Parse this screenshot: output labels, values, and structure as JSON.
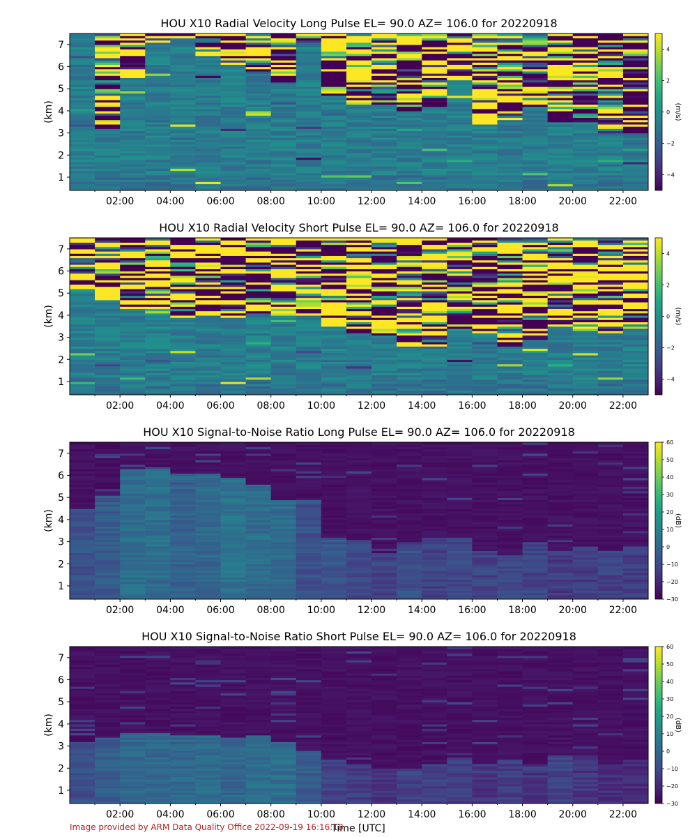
{
  "figure": {
    "xlabel": "Time [UTC]",
    "credit": "Image provided by ARM Data Quality Office 2022-09-19 16:16:18"
  },
  "chart_data": [
    {
      "type": "heatmap",
      "title": "HOU X10 Radial Velocity Long Pulse EL= 90.0 AZ= 106.0 for 20220918",
      "ylabel": "(km)",
      "colorbar_label": "(m/s)",
      "x_ticks": [
        "02:00",
        "04:00",
        "06:00",
        "08:00",
        "10:00",
        "12:00",
        "14:00",
        "16:00",
        "18:00",
        "20:00",
        "22:00"
      ],
      "x_tick_hours": [
        2,
        4,
        6,
        8,
        10,
        12,
        14,
        16,
        18,
        20,
        22
      ],
      "xlim_hours": [
        0,
        23
      ],
      "y_ticks": [
        "1",
        "2",
        "3",
        "4",
        "5",
        "6",
        "7"
      ],
      "y_tick_values": [
        1,
        2,
        3,
        4,
        5,
        6,
        7
      ],
      "ylim_km": [
        0.4,
        7.5
      ],
      "colorbar_ticks": [
        "4",
        "2",
        "0",
        "−2",
        "−4"
      ],
      "colorbar_tick_values": [
        4,
        2,
        0,
        -2,
        -4
      ],
      "clim": [
        -5,
        5
      ],
      "colormap": "viridis",
      "noise_above_km_by_hour": [
        7.5,
        3.2,
        5.4,
        7.0,
        7.2,
        6.4,
        6.0,
        5.6,
        5.2,
        7.0,
        4.6,
        4.3,
        4.3,
        4.0,
        4.2,
        5.3,
        3.4,
        3.6,
        4.2,
        3.5,
        3.5,
        3.2,
        3.0,
        4.5
      ]
    },
    {
      "type": "heatmap",
      "title": "HOU X10 Radial Velocity Short Pulse EL= 90.0 AZ= 106.0 for 20220918",
      "ylabel": "(km)",
      "colorbar_label": "(m/s)",
      "x_ticks": [
        "02:00",
        "04:00",
        "06:00",
        "08:00",
        "10:00",
        "12:00",
        "14:00",
        "16:00",
        "18:00",
        "20:00",
        "22:00"
      ],
      "x_tick_hours": [
        2,
        4,
        6,
        8,
        10,
        12,
        14,
        16,
        18,
        20,
        22
      ],
      "xlim_hours": [
        0,
        23
      ],
      "y_ticks": [
        "1",
        "2",
        "3",
        "4",
        "5",
        "6",
        "7"
      ],
      "y_tick_values": [
        1,
        2,
        3,
        4,
        5,
        6,
        7
      ],
      "ylim_km": [
        0.4,
        7.5
      ],
      "colorbar_ticks": [
        "4",
        "2",
        "0",
        "−2",
        "−4"
      ],
      "colorbar_tick_values": [
        4,
        2,
        0,
        -2,
        -4
      ],
      "clim": [
        -5,
        5
      ],
      "colormap": "viridis",
      "noise_above_km_by_hour": [
        5.0,
        4.6,
        4.3,
        4.0,
        3.9,
        4.0,
        3.9,
        4.1,
        4.0,
        4.0,
        3.5,
        3.2,
        3.1,
        2.6,
        2.5,
        3.3,
        3.2,
        2.6,
        2.9,
        3.5,
        3.3,
        3.2,
        3.6,
        3.8
      ]
    },
    {
      "type": "heatmap",
      "title": "HOU X10 Signal-to-Noise Ratio Long Pulse EL= 90.0 AZ= 106.0 for 20220918",
      "ylabel": "(km)",
      "colorbar_label": "(dB)",
      "x_ticks": [
        "02:00",
        "04:00",
        "06:00",
        "08:00",
        "10:00",
        "12:00",
        "14:00",
        "16:00",
        "18:00",
        "20:00",
        "22:00"
      ],
      "x_tick_hours": [
        2,
        4,
        6,
        8,
        10,
        12,
        14,
        16,
        18,
        20,
        22
      ],
      "xlim_hours": [
        0,
        23
      ],
      "y_ticks": [
        "1",
        "2",
        "3",
        "4",
        "5",
        "6",
        "7"
      ],
      "y_tick_values": [
        1,
        2,
        3,
        4,
        5,
        6,
        7
      ],
      "ylim_km": [
        0.4,
        7.5
      ],
      "colorbar_ticks": [
        "60",
        "50",
        "40",
        "30",
        "20",
        "10",
        "0",
        "−10",
        "−20",
        "−30"
      ],
      "colorbar_tick_values": [
        60,
        50,
        40,
        30,
        20,
        10,
        0,
        -10,
        -20,
        -30
      ],
      "clim": [
        -30,
        60
      ],
      "colormap": "viridis",
      "signal_top_km_by_hour": [
        4.5,
        5.0,
        6.2,
        6.2,
        6.0,
        6.0,
        5.8,
        5.5,
        4.8,
        4.8,
        3.2,
        3.0,
        2.5,
        2.8,
        3.2,
        3.2,
        2.6,
        2.4,
        3.0,
        2.5,
        2.8,
        2.6,
        2.8,
        2.6
      ],
      "signal_snr_db_by_hour": [
        -8,
        -4,
        2,
        2,
        -2,
        0,
        4,
        2,
        2,
        -8,
        -6,
        -10,
        -12,
        -8,
        -12,
        -10,
        -12,
        -10,
        -12,
        -14,
        -14,
        -12,
        -14,
        -14
      ]
    },
    {
      "type": "heatmap",
      "title": "HOU X10 Signal-to-Noise Ratio Short Pulse EL= 90.0 AZ= 106.0 for 20220918",
      "ylabel": "(km)",
      "colorbar_label": "(dB)",
      "x_ticks": [
        "02:00",
        "04:00",
        "06:00",
        "08:00",
        "10:00",
        "12:00",
        "14:00",
        "16:00",
        "18:00",
        "20:00",
        "22:00"
      ],
      "x_tick_hours": [
        2,
        4,
        6,
        8,
        10,
        12,
        14,
        16,
        18,
        20,
        22
      ],
      "xlim_hours": [
        0,
        23
      ],
      "y_ticks": [
        "1",
        "2",
        "3",
        "4",
        "5",
        "6",
        "7"
      ],
      "y_tick_values": [
        1,
        2,
        3,
        4,
        5,
        6,
        7
      ],
      "ylim_km": [
        0.4,
        7.5
      ],
      "colorbar_ticks": [
        "60",
        "50",
        "40",
        "30",
        "20",
        "10",
        "0",
        "−10",
        "−20",
        "−30"
      ],
      "colorbar_tick_values": [
        60,
        50,
        40,
        30,
        20,
        10,
        0,
        -10,
        -20,
        -30
      ],
      "clim": [
        -30,
        60
      ],
      "colormap": "viridis",
      "signal_top_km_by_hour": [
        3.2,
        3.4,
        3.6,
        3.6,
        3.5,
        3.5,
        3.4,
        3.5,
        3.2,
        2.8,
        2.4,
        2.2,
        2.0,
        2.0,
        2.2,
        2.5,
        2.2,
        2.4,
        2.2,
        2.6,
        2.6,
        2.2,
        2.4,
        2.6
      ],
      "signal_snr_db_by_hour": [
        -8,
        -4,
        0,
        0,
        0,
        2,
        0,
        2,
        2,
        -4,
        -12,
        -14,
        -16,
        -12,
        -14,
        -14,
        -16,
        -14,
        -16,
        -12,
        -16,
        -18,
        -18,
        -16
      ]
    }
  ]
}
